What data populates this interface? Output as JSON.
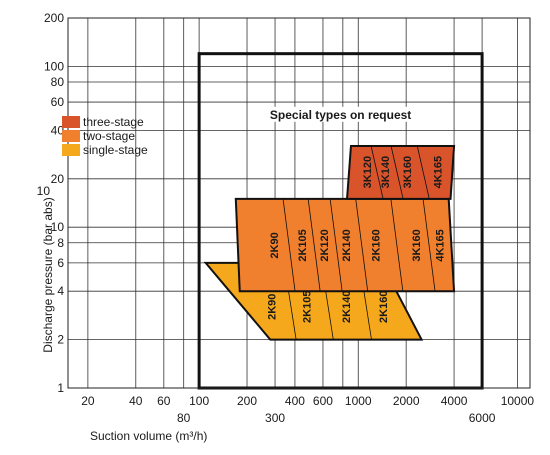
{
  "chart_data": {
    "type": "area",
    "xlabel": "Suction volume (m³/h)",
    "ylabel": "Discharge pressure (bar abs)",
    "x_scale": "log",
    "y_scale": "log",
    "xlim": [
      15,
      12000
    ],
    "ylim": [
      1,
      200
    ],
    "grid": true,
    "x_ticks_top_row": [
      "20",
      "40",
      "60",
      "100",
      "200",
      "400",
      "600",
      "1000",
      "2000",
      "4000",
      "10000"
    ],
    "x_ticks_bottom_row": [
      "80",
      "300",
      "6000"
    ],
    "y_ticks": [
      "200",
      "100",
      "80",
      "60",
      "40",
      "20",
      "10",
      "10",
      "8",
      "6",
      "4",
      "2",
      "1"
    ],
    "legend_position": "top-left",
    "legend": [
      {
        "name": "three-stage",
        "color": "#d9532b"
      },
      {
        "name": "two-stage",
        "color": "#f07f2e"
      },
      {
        "name": "single-stage",
        "color": "#f5a81c"
      }
    ],
    "special_region": {
      "label": "Special types on request",
      "x_range": [
        100,
        6000
      ],
      "y_range": [
        1,
        120
      ]
    },
    "series": [
      {
        "name": "three-stage",
        "color": "#d9532b",
        "polygon": [
          [
            900,
            32
          ],
          [
            4000,
            32
          ],
          [
            3800,
            15
          ],
          [
            850,
            15
          ]
        ],
        "zones": [
          {
            "label": "3K120",
            "x": 1150,
            "y": 22
          },
          {
            "label": "3K140",
            "x": 1500,
            "y": 22
          },
          {
            "label": "3K160",
            "x": 2050,
            "y": 22
          },
          {
            "label": "4K165",
            "x": 3200,
            "y": 22
          }
        ]
      },
      {
        "name": "two-stage",
        "color": "#f07f2e",
        "polygon": [
          [
            170,
            15
          ],
          [
            3700,
            15
          ],
          [
            4000,
            4
          ],
          [
            180,
            4
          ]
        ],
        "zones": [
          {
            "label": "2K90",
            "x": 300,
            "y": 7.7
          },
          {
            "label": "2K105",
            "x": 450,
            "y": 7.7
          },
          {
            "label": "2K120",
            "x": 620,
            "y": 7.7
          },
          {
            "label": "2K140",
            "x": 850,
            "y": 7.7
          },
          {
            "label": "2K160",
            "x": 1300,
            "y": 7.7
          },
          {
            "label": "3K160",
            "x": 2350,
            "y": 7.7
          },
          {
            "label": "4K165",
            "x": 3300,
            "y": 7.7
          }
        ]
      },
      {
        "name": "single-stage",
        "color": "#f5a81c",
        "polygon": [
          [
            110,
            6
          ],
          [
            1400,
            6
          ],
          [
            2500,
            2
          ],
          [
            280,
            2
          ]
        ],
        "zones": [
          {
            "label": "2K90",
            "x": 290,
            "y": 3.2
          },
          {
            "label": "2K105",
            "x": 480,
            "y": 3.2
          },
          {
            "label": "2K140",
            "x": 850,
            "y": 3.2
          },
          {
            "label": "2K160",
            "x": 1450,
            "y": 3.2
          }
        ]
      }
    ]
  }
}
